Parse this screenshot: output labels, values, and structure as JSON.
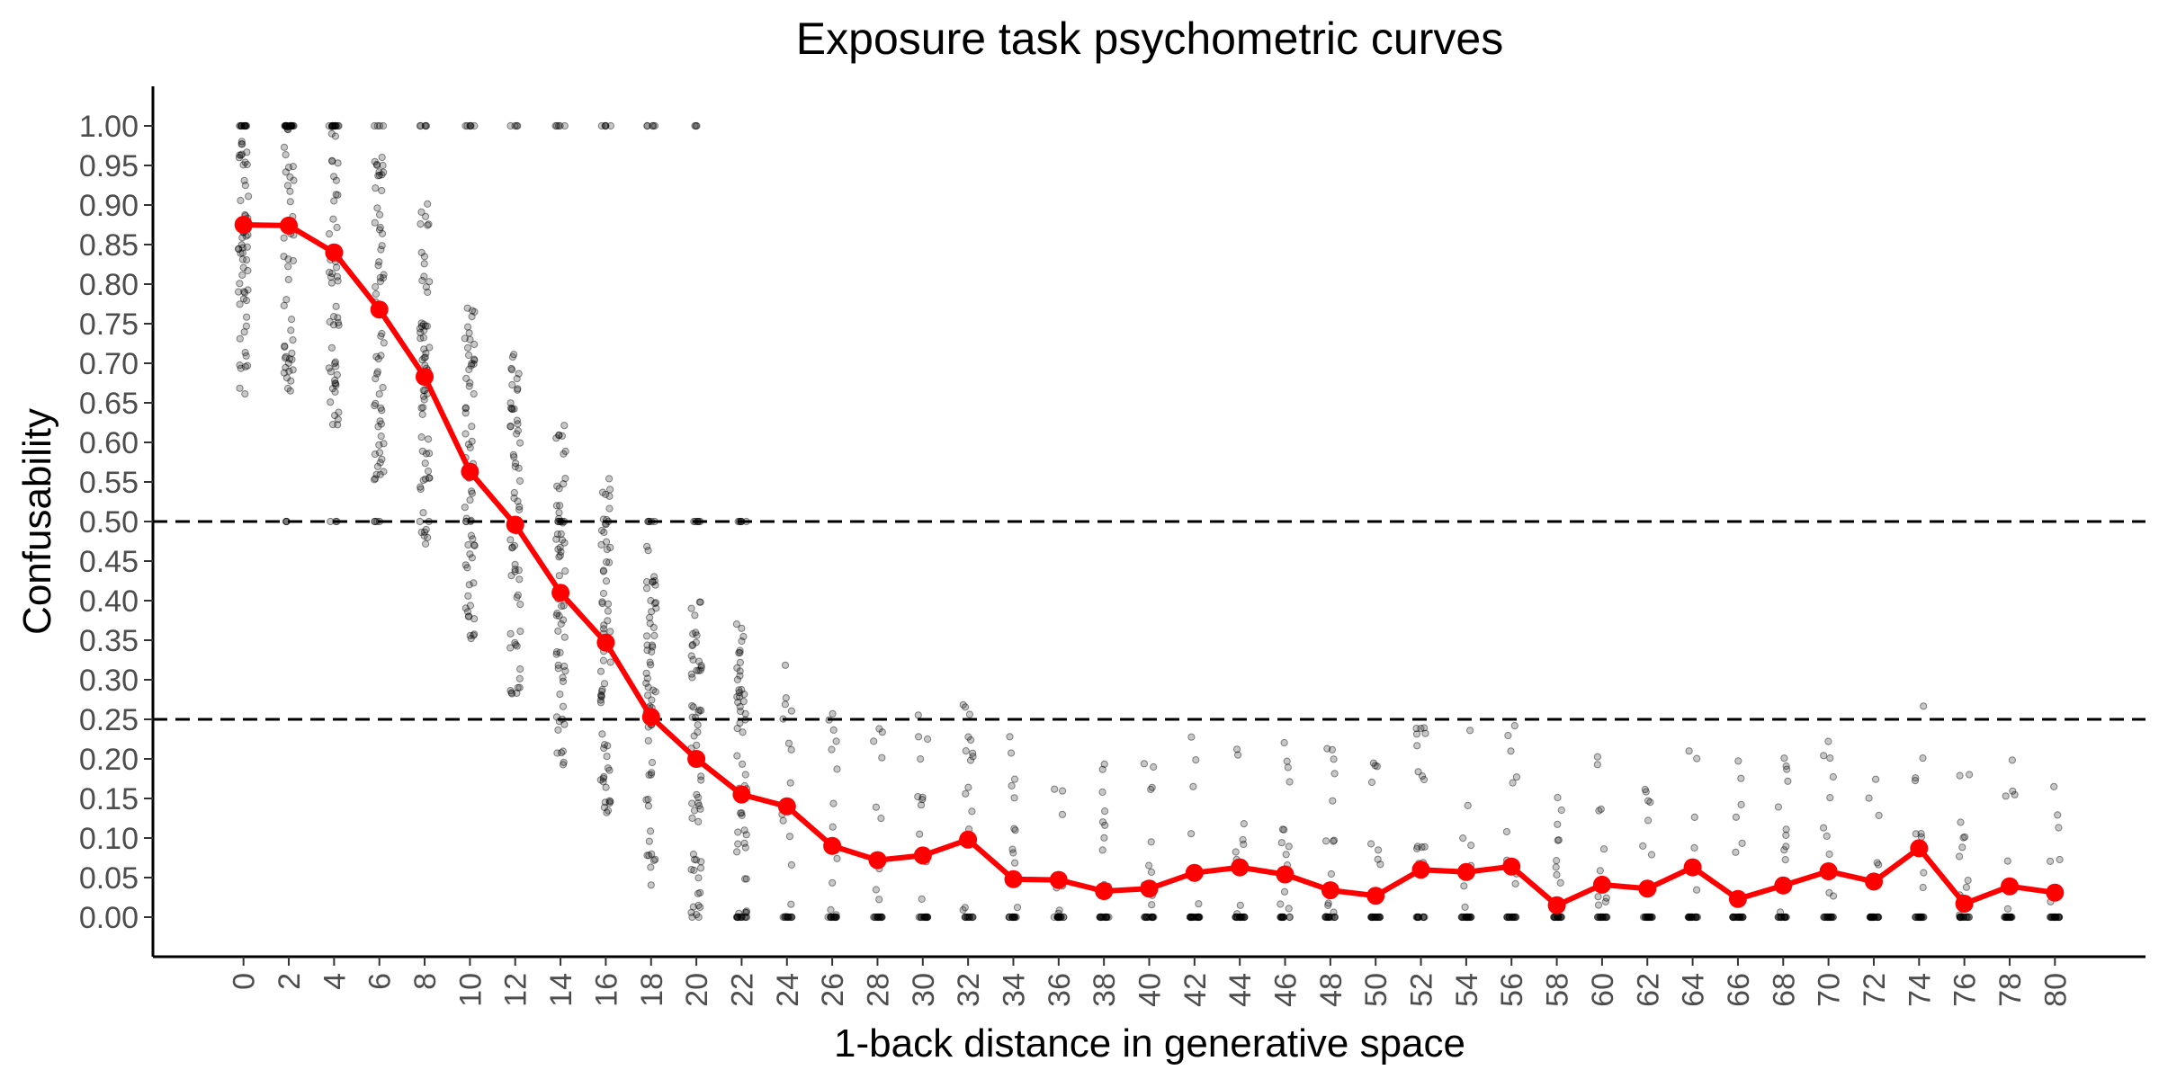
{
  "chart_data": {
    "type": "line",
    "title": "Exposure task psychometric curves",
    "xlabel": "1-back distance in generative space",
    "ylabel": "Confusability",
    "x_ticks": [
      "0",
      "2",
      "4",
      "6",
      "8",
      "10",
      "12",
      "14",
      "16",
      "18",
      "20",
      "22",
      "24",
      "26",
      "28",
      "30",
      "32",
      "34",
      "36",
      "38",
      "40",
      "42",
      "44",
      "46",
      "48",
      "50",
      "52",
      "54",
      "56",
      "58",
      "60",
      "62",
      "64",
      "66",
      "68",
      "70",
      "72",
      "74",
      "76",
      "78",
      "80"
    ],
    "y_ticks": [
      "0.00",
      "0.05",
      "0.10",
      "0.15",
      "0.20",
      "0.25",
      "0.30",
      "0.35",
      "0.40",
      "0.45",
      "0.50",
      "0.55",
      "0.60",
      "0.65",
      "0.70",
      "0.75",
      "0.80",
      "0.85",
      "0.90",
      "0.95",
      "1.00"
    ],
    "xlim": [
      -4,
      84
    ],
    "ylim": [
      -0.05,
      1.05
    ],
    "reference_lines": [
      0.5,
      0.25
    ],
    "series": [
      {
        "x": [
          0,
          2,
          4,
          6,
          8,
          10,
          12,
          14,
          16,
          18,
          20,
          22,
          24,
          26,
          28,
          30,
          32,
          34,
          36,
          38,
          40,
          42,
          44,
          46,
          48,
          50,
          52,
          54,
          56,
          58,
          60,
          62,
          64,
          66,
          68,
          70,
          72,
          74,
          76,
          78,
          80
        ],
        "values": [
          0.875,
          0.874,
          0.84,
          0.768,
          0.683,
          0.563,
          0.496,
          0.41,
          0.347,
          0.253,
          0.2,
          0.155,
          0.14,
          0.09,
          0.072,
          0.078,
          0.098,
          0.048,
          0.047,
          0.033,
          0.036,
          0.056,
          0.063,
          0.054,
          0.034,
          0.027,
          0.06,
          0.057,
          0.064,
          0.015,
          0.041,
          0.036,
          0.063,
          0.023,
          0.04,
          0.058,
          0.045,
          0.087,
          0.017,
          0.039,
          0.031
        ],
        "color": "#ff0000"
      }
    ],
    "scatter_color": "#000000",
    "grid": false
  }
}
